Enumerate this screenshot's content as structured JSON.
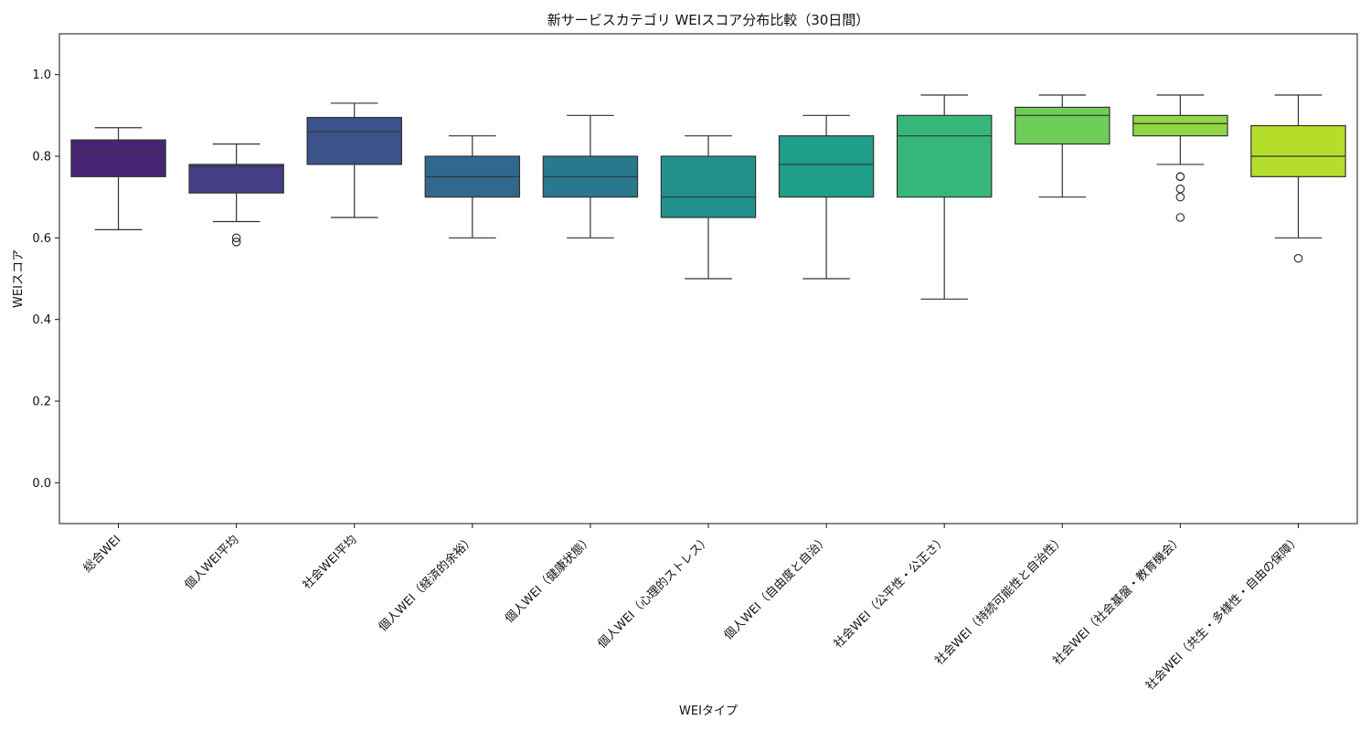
{
  "chart_data": {
    "type": "box",
    "title": "新サービスカテゴリ WEIスコア分布比較（30日間）",
    "xlabel": "WEIタイプ",
    "ylabel": "WEIスコア",
    "ylim": [
      -0.1,
      1.1
    ],
    "yticks": [
      "0.0",
      "0.2",
      "0.4",
      "0.6",
      "0.8",
      "1.0"
    ],
    "grid": false,
    "legend": "none",
    "categories": [
      "総合WEI",
      "個人WEI平均",
      "社会WEI平均",
      "個人WEI（経済的余裕）",
      "個人WEI（健康状態）",
      "個人WEI（心理的ストレス）",
      "個人WEI（自由度と自治）",
      "社会WEI（公平性・公正さ）",
      "社会WEI（持続可能性と自治性）",
      "社会WEI（社会基盤・教育機会）",
      "社会WEI（共生・多様性・自由の保障）"
    ],
    "boxes": [
      {
        "whisker_low": 0.62,
        "q1": 0.75,
        "median": 0.81,
        "q3": 0.84,
        "whisker_high": 0.87,
        "outliers": [],
        "color": "#482475"
      },
      {
        "whisker_low": 0.64,
        "q1": 0.71,
        "median": 0.775,
        "q3": 0.78,
        "whisker_high": 0.83,
        "outliers": [
          0.59,
          0.6
        ],
        "color": "#433e85"
      },
      {
        "whisker_low": 0.65,
        "q1": 0.78,
        "median": 0.86,
        "q3": 0.895,
        "whisker_high": 0.93,
        "outliers": [],
        "color": "#3b528b"
      },
      {
        "whisker_low": 0.6,
        "q1": 0.7,
        "median": 0.75,
        "q3": 0.8,
        "whisker_high": 0.85,
        "outliers": [],
        "color": "#31688e"
      },
      {
        "whisker_low": 0.6,
        "q1": 0.7,
        "median": 0.75,
        "q3": 0.8,
        "whisker_high": 0.9,
        "outliers": [],
        "color": "#2a788e"
      },
      {
        "whisker_low": 0.5,
        "q1": 0.65,
        "median": 0.7,
        "q3": 0.8,
        "whisker_high": 0.85,
        "outliers": [],
        "color": "#21908d"
      },
      {
        "whisker_low": 0.5,
        "q1": 0.7,
        "median": 0.78,
        "q3": 0.85,
        "whisker_high": 0.9,
        "outliers": [],
        "color": "#1f9e89"
      },
      {
        "whisker_low": 0.45,
        "q1": 0.7,
        "median": 0.85,
        "q3": 0.9,
        "whisker_high": 0.95,
        "outliers": [],
        "color": "#35b779"
      },
      {
        "whisker_low": 0.7,
        "q1": 0.83,
        "median": 0.9,
        "q3": 0.92,
        "whisker_high": 0.95,
        "outliers": [],
        "color": "#6ece58"
      },
      {
        "whisker_low": 0.78,
        "q1": 0.85,
        "median": 0.88,
        "q3": 0.9,
        "whisker_high": 0.95,
        "outliers": [
          0.65,
          0.7,
          0.72,
          0.75,
          0.75
        ],
        "color": "#8fd744"
      },
      {
        "whisker_low": 0.6,
        "q1": 0.75,
        "median": 0.8,
        "q3": 0.875,
        "whisker_high": 0.95,
        "outliers": [
          0.55
        ],
        "color": "#b5de2b"
      }
    ]
  }
}
